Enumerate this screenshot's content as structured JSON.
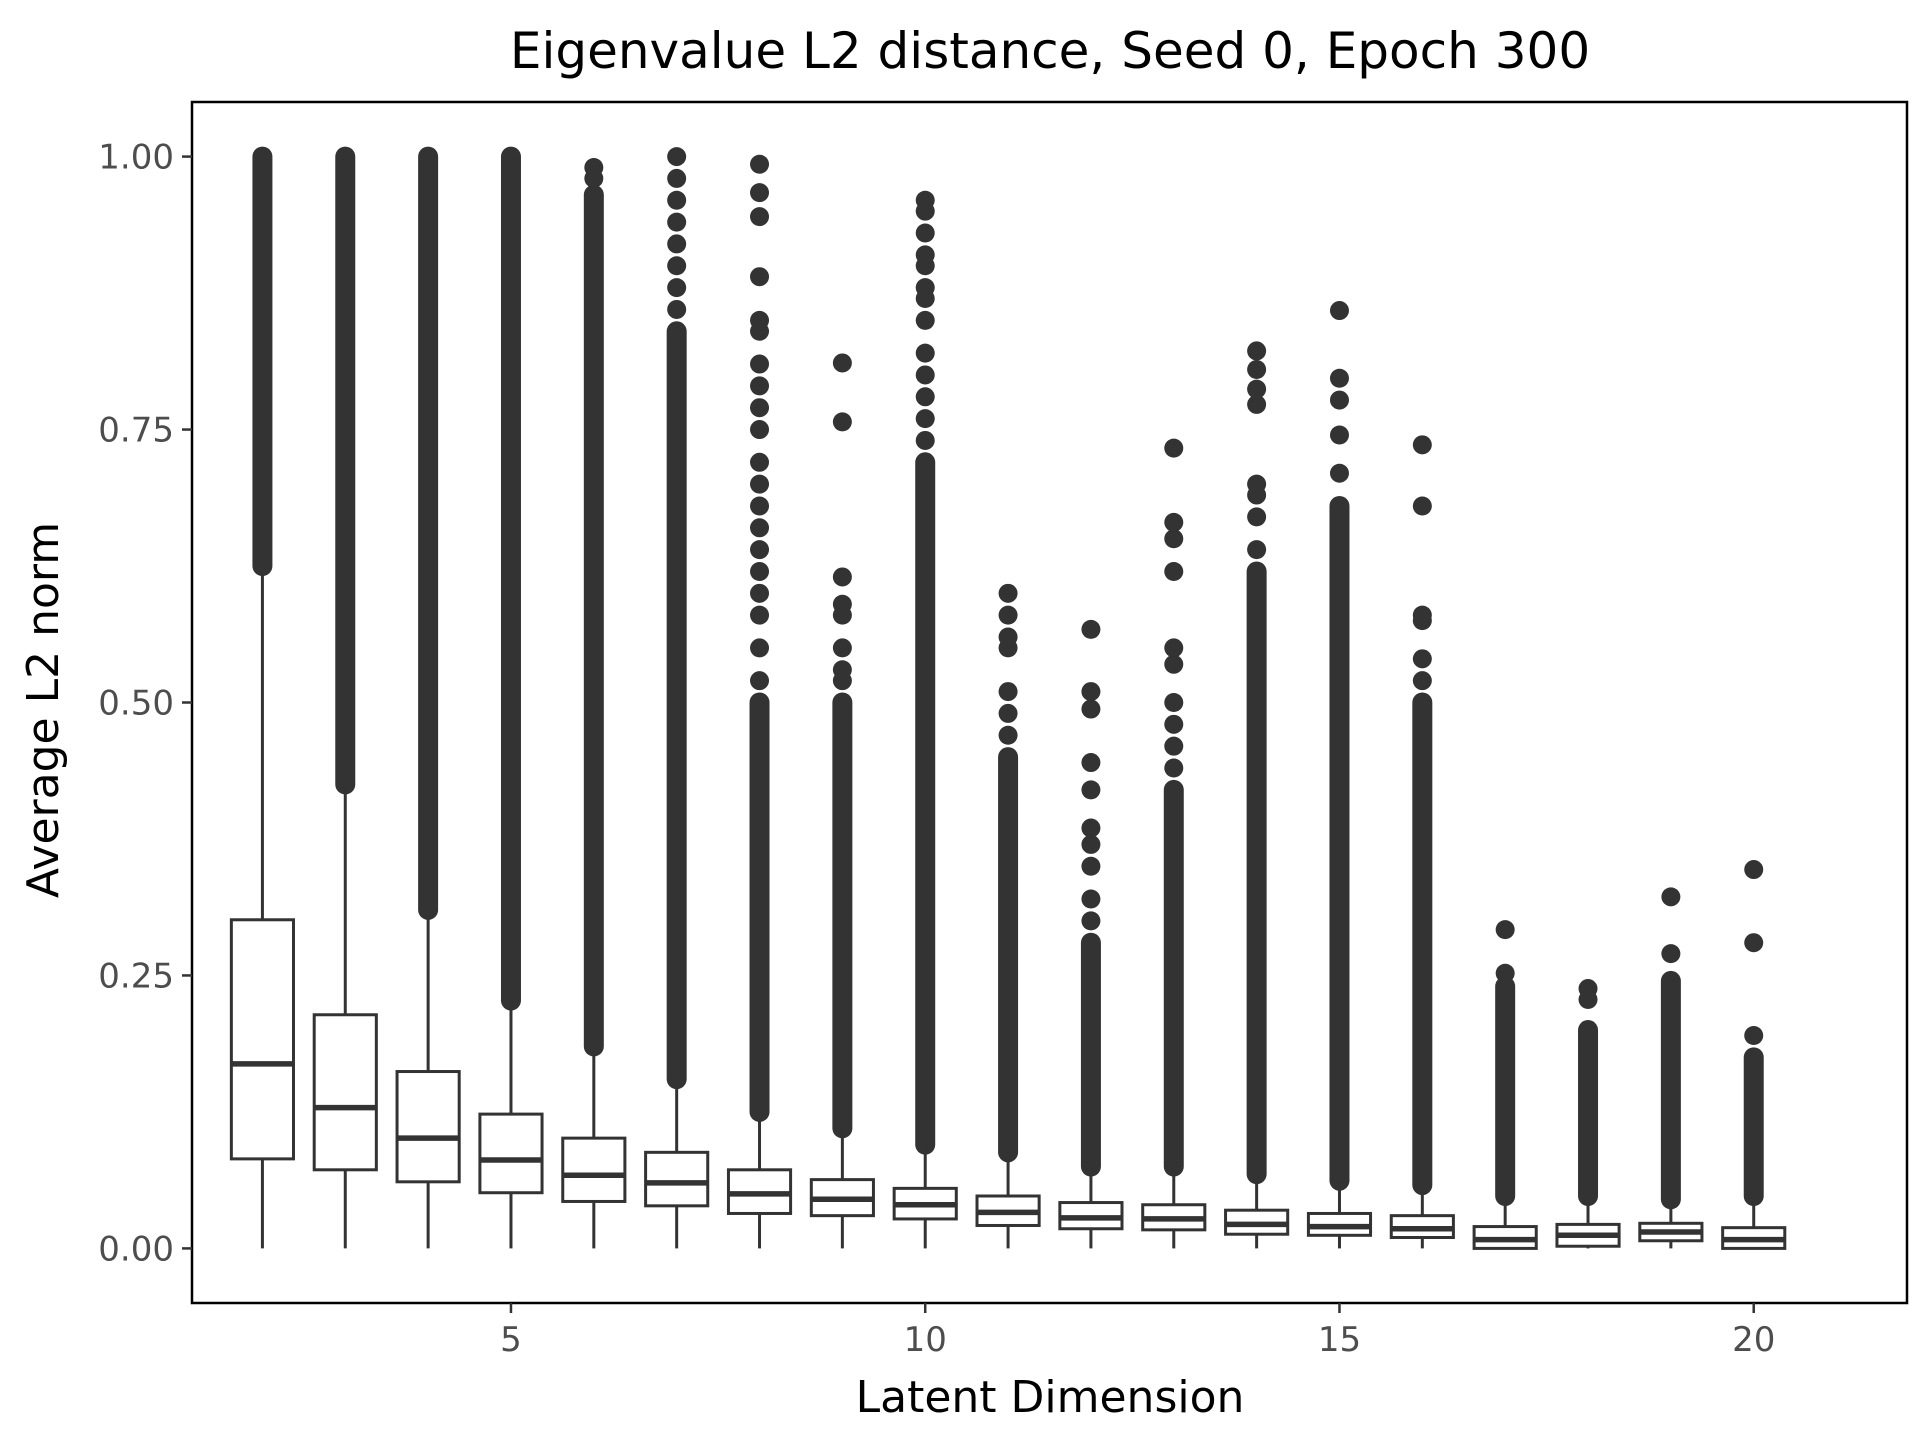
{
  "chart_data": {
    "type": "boxplot",
    "title": "Eigenvalue L2 distance,  Seed 0, Epoch 300",
    "xlabel": "Latent Dimension",
    "ylabel": "Average L2 norm",
    "xlim": [
      1.15,
      21.85
    ],
    "ylim": [
      -0.05,
      1.05
    ],
    "x_ticks": [
      5,
      10,
      15,
      20
    ],
    "x_tick_labels": [
      "5",
      "10",
      "15",
      "20"
    ],
    "y_ticks": [
      0,
      0.25,
      0.5,
      0.75,
      1.0
    ],
    "y_tick_labels": [
      "0.00",
      "0.25",
      "0.50",
      "0.75",
      "1.00"
    ],
    "grid": false,
    "colors": {
      "box_line": "#333333",
      "outlier": "#333333",
      "frame": "#000000",
      "background": "#ffffff"
    },
    "boxes": [
      {
        "x": 2,
        "q1": 0.082,
        "median": 0.169,
        "q3": 0.301,
        "whisker_low": 0.0,
        "whisker_high": 0.625,
        "dense_outliers": [
          0.625,
          1.0
        ],
        "outliers": []
      },
      {
        "x": 3,
        "q1": 0.072,
        "median": 0.129,
        "q3": 0.214,
        "whisker_low": 0.0,
        "whisker_high": 0.425,
        "dense_outliers": [
          0.425,
          1.0
        ],
        "outliers": []
      },
      {
        "x": 4,
        "q1": 0.061,
        "median": 0.101,
        "q3": 0.162,
        "whisker_low": 0.0,
        "whisker_high": 0.31,
        "dense_outliers": [
          0.31,
          1.0
        ],
        "outliers": []
      },
      {
        "x": 5,
        "q1": 0.051,
        "median": 0.081,
        "q3": 0.123,
        "whisker_low": 0.0,
        "whisker_high": 0.227,
        "dense_outliers": [
          0.227,
          1.0
        ],
        "outliers": []
      },
      {
        "x": 6,
        "q1": 0.043,
        "median": 0.067,
        "q3": 0.101,
        "whisker_low": 0.0,
        "whisker_high": 0.185,
        "dense_outliers": [
          0.185,
          0.965
        ],
        "outliers": [
          0.99,
          0.98
        ]
      },
      {
        "x": 7,
        "q1": 0.039,
        "median": 0.06,
        "q3": 0.088,
        "whisker_low": 0.0,
        "whisker_high": 0.155,
        "dense_outliers": [
          0.155,
          0.84
        ],
        "outliers": [
          0.86,
          0.88,
          0.9,
          0.92,
          0.94,
          0.96,
          0.98,
          1.0
        ]
      },
      {
        "x": 8,
        "q1": 0.032,
        "median": 0.05,
        "q3": 0.072,
        "whisker_low": 0.0,
        "whisker_high": 0.125,
        "dense_outliers": [
          0.125,
          0.5
        ],
        "outliers": [
          0.52,
          0.55,
          0.58,
          0.6,
          0.62,
          0.64,
          0.66,
          0.68,
          0.7,
          0.72,
          0.75,
          0.77,
          0.79,
          0.81,
          0.84,
          0.85,
          0.89,
          0.945,
          0.967,
          0.993
        ]
      },
      {
        "x": 9,
        "q1": 0.03,
        "median": 0.045,
        "q3": 0.063,
        "whisker_low": 0.0,
        "whisker_high": 0.11,
        "dense_outliers": [
          0.11,
          0.5
        ],
        "outliers": [
          0.52,
          0.53,
          0.55,
          0.58,
          0.59,
          0.615,
          0.757,
          0.811
        ]
      },
      {
        "x": 10,
        "q1": 0.027,
        "median": 0.04,
        "q3": 0.055,
        "whisker_low": 0.0,
        "whisker_high": 0.095,
        "dense_outliers": [
          0.095,
          0.72
        ],
        "outliers": [
          0.74,
          0.76,
          0.78,
          0.8,
          0.82,
          0.85,
          0.87,
          0.88,
          0.9,
          0.91,
          0.93,
          0.95,
          0.96
        ]
      },
      {
        "x": 11,
        "q1": 0.021,
        "median": 0.033,
        "q3": 0.048,
        "whisker_low": 0.0,
        "whisker_high": 0.088,
        "dense_outliers": [
          0.088,
          0.45
        ],
        "outliers": [
          0.47,
          0.49,
          0.51,
          0.55,
          0.56,
          0.58,
          0.6
        ]
      },
      {
        "x": 12,
        "q1": 0.018,
        "median": 0.028,
        "q3": 0.042,
        "whisker_low": 0.0,
        "whisker_high": 0.075,
        "dense_outliers": [
          0.075,
          0.28
        ],
        "outliers": [
          0.3,
          0.32,
          0.35,
          0.37,
          0.385,
          0.42,
          0.445,
          0.494,
          0.51,
          0.567
        ]
      },
      {
        "x": 13,
        "q1": 0.017,
        "median": 0.027,
        "q3": 0.04,
        "whisker_low": 0.0,
        "whisker_high": 0.075,
        "dense_outliers": [
          0.075,
          0.42
        ],
        "outliers": [
          0.44,
          0.46,
          0.48,
          0.5,
          0.535,
          0.55,
          0.62,
          0.65,
          0.665,
          0.733
        ]
      },
      {
        "x": 14,
        "q1": 0.013,
        "median": 0.022,
        "q3": 0.035,
        "whisker_low": 0.0,
        "whisker_high": 0.068,
        "dense_outliers": [
          0.068,
          0.62
        ],
        "outliers": [
          0.64,
          0.67,
          0.69,
          0.7,
          0.773,
          0.787,
          0.805,
          0.822
        ]
      },
      {
        "x": 15,
        "q1": 0.012,
        "median": 0.02,
        "q3": 0.032,
        "whisker_low": 0.0,
        "whisker_high": 0.062,
        "dense_outliers": [
          0.062,
          0.68
        ],
        "outliers": [
          0.71,
          0.745,
          0.777,
          0.797,
          0.859
        ]
      },
      {
        "x": 16,
        "q1": 0.01,
        "median": 0.018,
        "q3": 0.03,
        "whisker_low": 0.0,
        "whisker_high": 0.058,
        "dense_outliers": [
          0.058,
          0.5
        ],
        "outliers": [
          0.52,
          0.54,
          0.575,
          0.58,
          0.68,
          0.736
        ]
      },
      {
        "x": 17,
        "q1": 0.0,
        "median": 0.008,
        "q3": 0.02,
        "whisker_low": 0.0,
        "whisker_high": 0.048,
        "dense_outliers": [
          0.048,
          0.24
        ],
        "outliers": [
          0.252,
          0.292
        ]
      },
      {
        "x": 18,
        "q1": 0.002,
        "median": 0.012,
        "q3": 0.022,
        "whisker_low": 0.0,
        "whisker_high": 0.048,
        "dense_outliers": [
          0.048,
          0.2
        ],
        "outliers": [
          0.228,
          0.238
        ]
      },
      {
        "x": 19,
        "q1": 0.007,
        "median": 0.015,
        "q3": 0.023,
        "whisker_low": 0.0,
        "whisker_high": 0.045,
        "dense_outliers": [
          0.045,
          0.245
        ],
        "outliers": [
          0.27,
          0.322
        ]
      },
      {
        "x": 20,
        "q1": 0.0,
        "median": 0.008,
        "q3": 0.019,
        "whisker_low": 0.0,
        "whisker_high": 0.048,
        "dense_outliers": [
          0.048,
          0.175
        ],
        "outliers": [
          0.195,
          0.28,
          0.347
        ]
      }
    ]
  }
}
